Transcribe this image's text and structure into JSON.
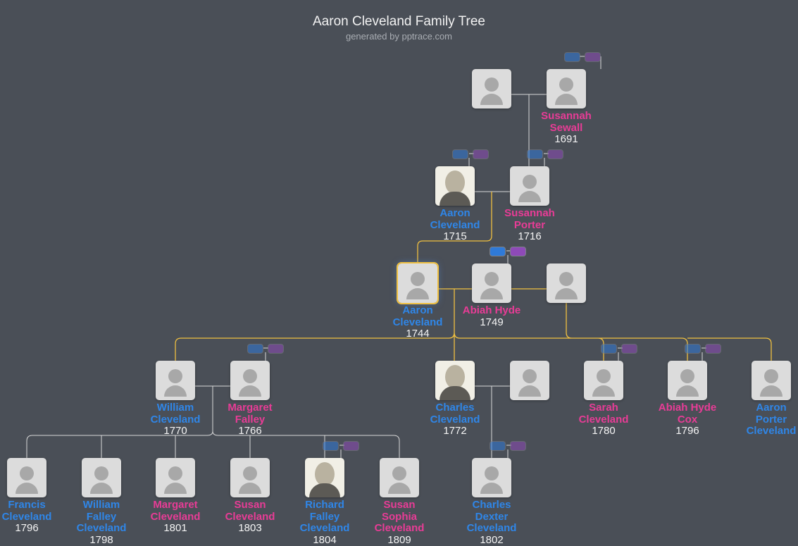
{
  "header": {
    "title": "Aaron Cleveland Family Tree",
    "subtitle": "generated by pptrace.com"
  },
  "colors": {
    "male": "#2f86e8",
    "female": "#e83c96",
    "focus_line": "#f0c040",
    "line": "#d8d8d8",
    "background": "#4a4f57"
  },
  "people": [
    {
      "name": "",
      "year": "",
      "gender": "m",
      "photo": false
    },
    {
      "name": "Susannah Sewall",
      "year": "1691",
      "gender": "f",
      "photo": false
    },
    {
      "name": "Aaron Cleveland",
      "year": "1715",
      "gender": "m",
      "photo": true
    },
    {
      "name": "Susannah Porter",
      "year": "1716",
      "gender": "f",
      "photo": false
    },
    {
      "name": "Aaron Cleveland",
      "year": "1744",
      "gender": "m",
      "photo": false,
      "focus": true
    },
    {
      "name": "Abiah Hyde",
      "year": "1749",
      "gender": "f",
      "photo": false
    },
    {
      "name": "",
      "year": "",
      "gender": "m",
      "photo": false
    },
    {
      "name": "William Cleveland",
      "year": "1770",
      "gender": "m",
      "photo": false
    },
    {
      "name": "Margaret Falley",
      "year": "1766",
      "gender": "f",
      "photo": false
    },
    {
      "name": "Charles Cleveland",
      "year": "1772",
      "gender": "m",
      "photo": true
    },
    {
      "name": "",
      "year": "",
      "gender": "f",
      "photo": false
    },
    {
      "name": "Sarah Cleveland",
      "year": "1780",
      "gender": "f",
      "photo": false
    },
    {
      "name": "Abiah Hyde Cox",
      "year": "1796",
      "gender": "f",
      "photo": false
    },
    {
      "name": "Aaron Porter Cleveland",
      "year": "",
      "gender": "m",
      "photo": false
    },
    {
      "name": "Francis Cleveland",
      "year": "1796",
      "gender": "m",
      "photo": false
    },
    {
      "name": "William Falley Cleveland",
      "year": "1798",
      "gender": "m",
      "photo": false
    },
    {
      "name": "Margaret Cleveland",
      "year": "1801",
      "gender": "f",
      "photo": false
    },
    {
      "name": "Susan Cleveland",
      "year": "1803",
      "gender": "f",
      "photo": false
    },
    {
      "name": "Richard Falley Cleveland",
      "year": "1804",
      "gender": "m",
      "photo": true
    },
    {
      "name": "Susan Sophia Cleveland",
      "year": "1809",
      "gender": "f",
      "photo": false
    },
    {
      "name": "Charles Dexter Cleveland",
      "year": "1802",
      "gender": "m",
      "photo": false
    }
  ]
}
